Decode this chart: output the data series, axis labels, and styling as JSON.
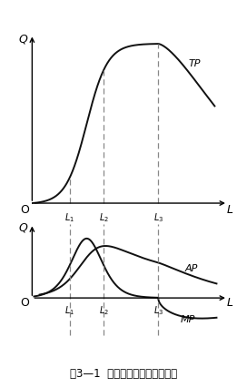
{
  "title": "图3—1  生产函数图形及位置关系",
  "l1": 0.2,
  "l2": 0.38,
  "l3": 0.67,
  "tp_label": "TP",
  "ap_label": "AP",
  "mp_label": "MP",
  "q_label": "Q",
  "l_label": "L",
  "o_label": "O",
  "dashed_color": "#888888",
  "curve_color": "#111111",
  "bg_color": "#ffffff"
}
